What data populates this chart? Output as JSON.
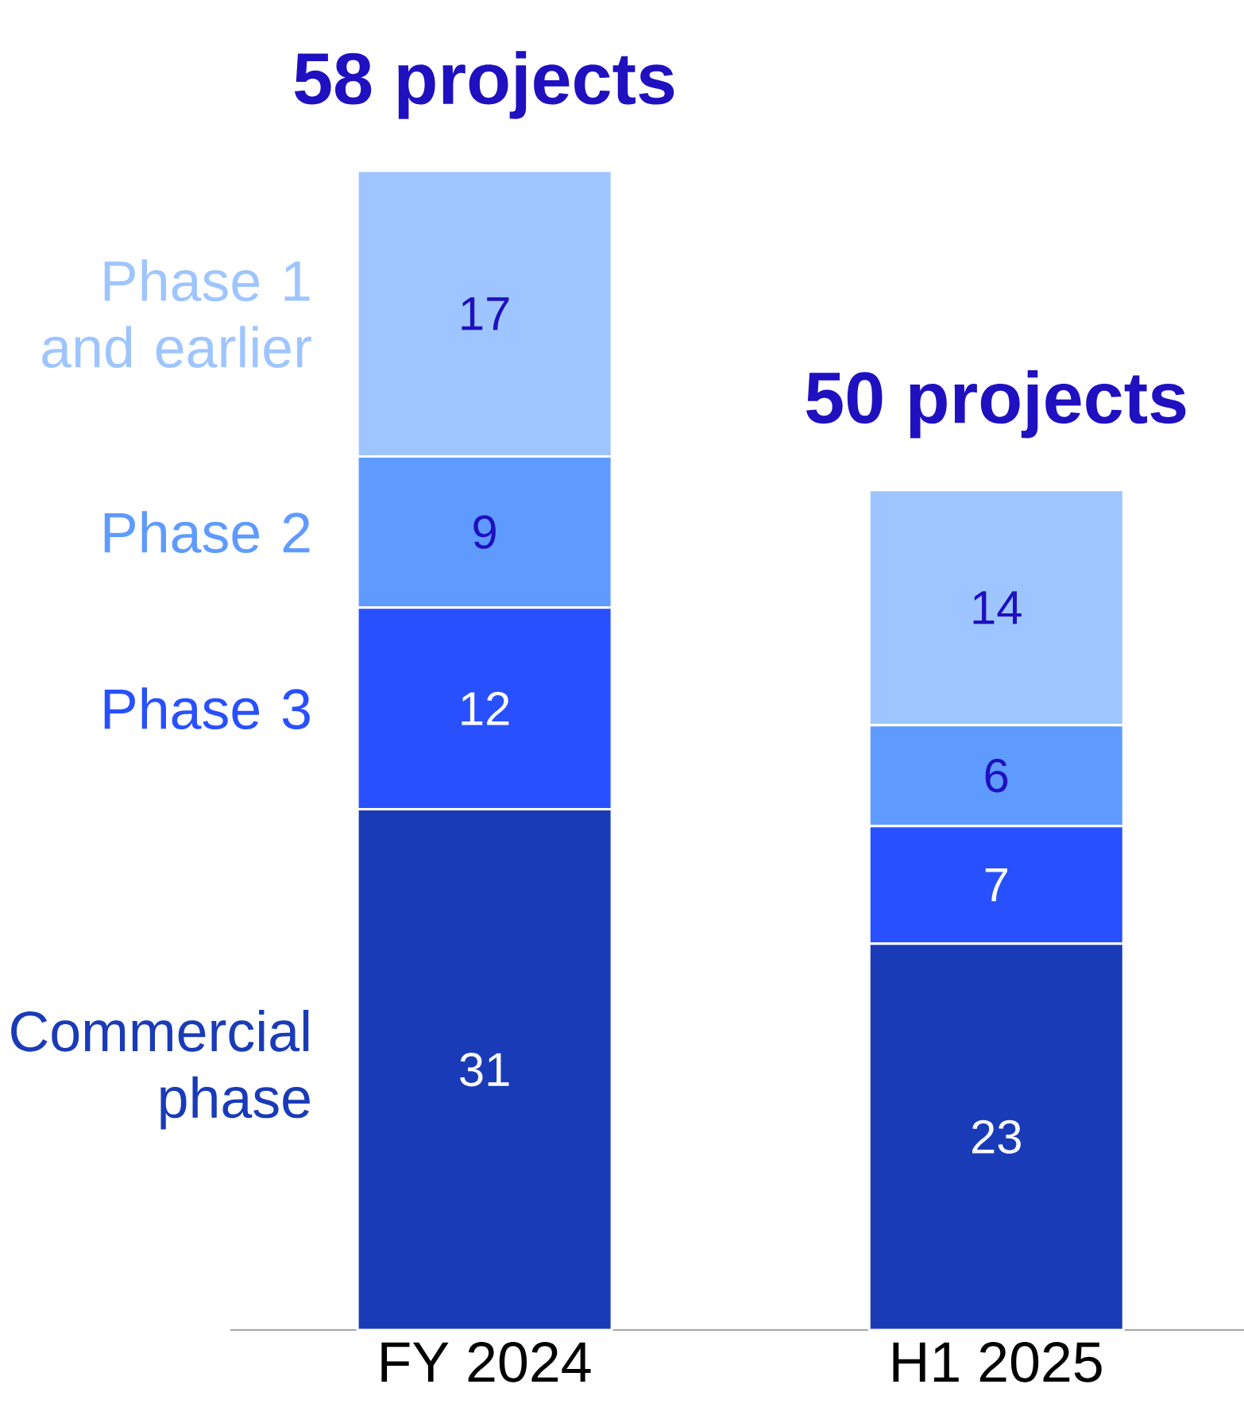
{
  "chart_data": {
    "type": "bar",
    "stacked": true,
    "categories": [
      "FY 2024",
      "H1 2025"
    ],
    "series": [
      {
        "name": "Commercial phase",
        "color": "#1a3bb8",
        "values": [
          31,
          23
        ]
      },
      {
        "name": "Phase 3",
        "color": "#2850ff",
        "values": [
          12,
          7
        ]
      },
      {
        "name": "Phase 2",
        "color": "#5f9bff",
        "values": [
          9,
          6
        ]
      },
      {
        "name": "Phase 1 and earlier",
        "color": "#9ec5ff",
        "values": [
          17,
          14
        ]
      }
    ],
    "data_labels": true,
    "annotations": [
      "58 projects",
      "50 projects"
    ],
    "legend": "left",
    "tick_labels": "x"
  }
}
